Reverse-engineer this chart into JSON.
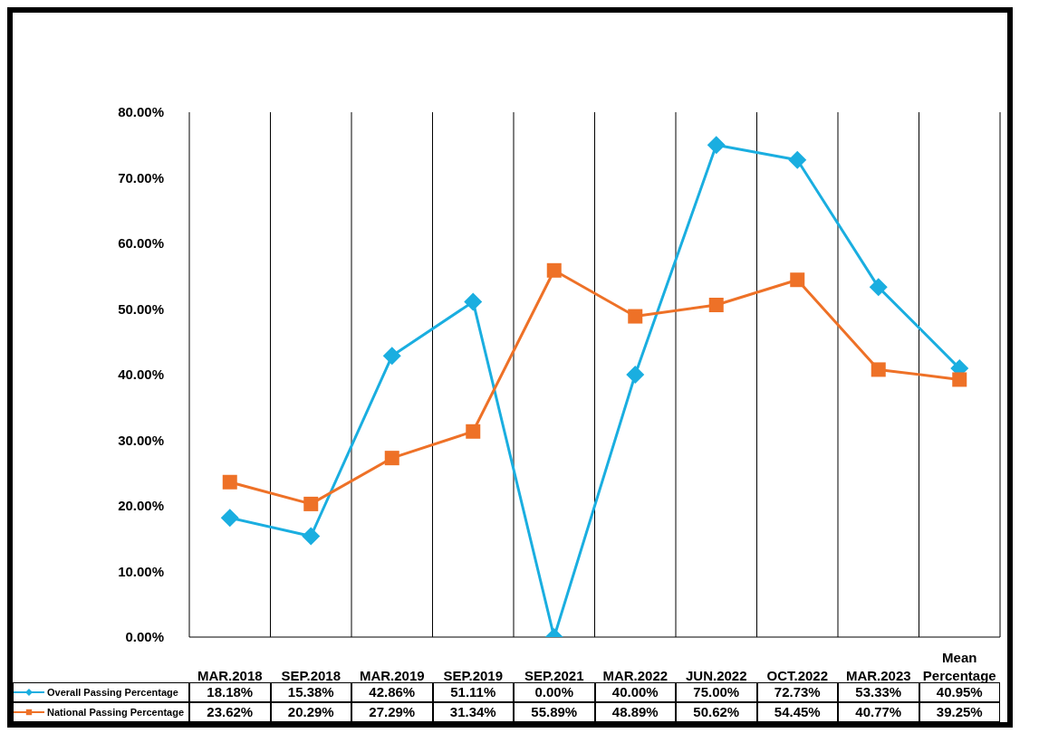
{
  "chart_data": {
    "type": "line",
    "categories": [
      "MAR.2018",
      "SEP.2018",
      "MAR.2019",
      "SEP.2019",
      "SEP.2021",
      "MAR.2022",
      "JUN.2022",
      "OCT.2022",
      "MAR.2023",
      "Mean Percentage"
    ],
    "series": [
      {
        "name": "Overall Passing Percentage",
        "color": "#1aaee0",
        "marker": "diamond",
        "values": [
          18.18,
          15.38,
          42.86,
          51.11,
          0.0,
          40.0,
          75.0,
          72.73,
          53.33,
          40.95
        ],
        "value_labels": [
          "18.18%",
          "15.38%",
          "42.86%",
          "51.11%",
          "0.00%",
          "40.00%",
          "75.00%",
          "72.73%",
          "53.33%",
          "40.95%"
        ]
      },
      {
        "name": "National Passing Percentage",
        "color": "#ee7127",
        "marker": "square",
        "values": [
          23.62,
          20.29,
          27.29,
          31.34,
          55.89,
          48.89,
          50.62,
          54.45,
          40.77,
          39.25
        ],
        "value_labels": [
          "23.62%",
          "20.29%",
          "27.29%",
          "31.34%",
          "55.89%",
          "48.89%",
          "50.62%",
          "54.45%",
          "40.77%",
          "39.25%"
        ]
      }
    ],
    "ylim": [
      0,
      80
    ],
    "yticks": [
      {
        "value": 0,
        "label": "0.00%"
      },
      {
        "value": 10,
        "label": "10.00%"
      },
      {
        "value": 20,
        "label": "20.00%"
      },
      {
        "value": 30,
        "label": "30.00%"
      },
      {
        "value": 40,
        "label": "40.00%"
      },
      {
        "value": 50,
        "label": "50.00%"
      },
      {
        "value": 60,
        "label": "60.00%"
      },
      {
        "value": 70,
        "label": "70.00%"
      },
      {
        "value": 80,
        "label": "80.00%"
      }
    ],
    "grid": "x",
    "legend": "bottom left",
    "line_style": "solid"
  }
}
